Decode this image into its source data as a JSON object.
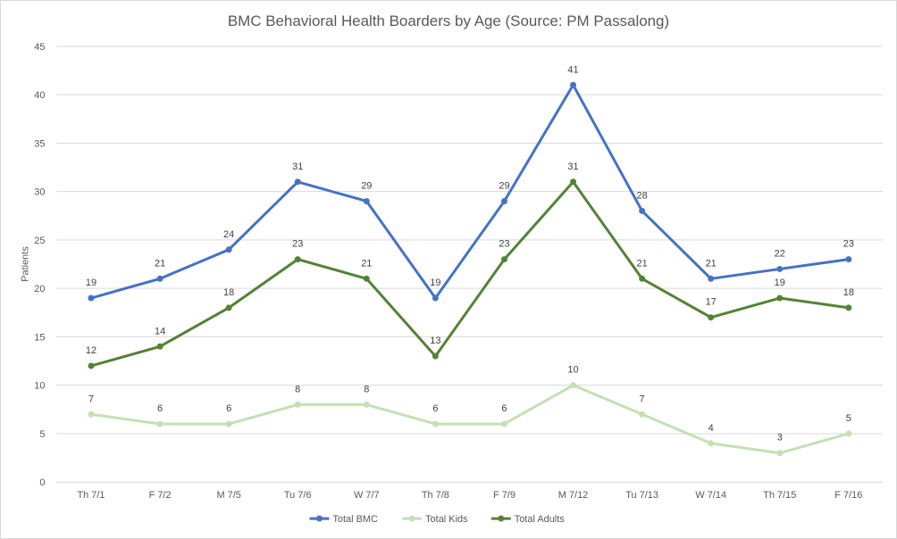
{
  "chart_data": {
    "type": "line",
    "title": "BMC Behavioral Health Boarders by Age (Source: PM Passalong)",
    "xlabel": "",
    "ylabel": "Patients",
    "ylim": [
      0,
      45
    ],
    "ytick_step": 5,
    "grid": true,
    "legend_position": "bottom",
    "categories": [
      "Th 7/1",
      "F 7/2",
      "M 7/5",
      "Tu 7/6",
      "W 7/7",
      "Th 7/8",
      "F 7/9",
      "M 7/12",
      "Tu 7/13",
      "W 7/14",
      "Th 7/15",
      "F 7/16"
    ],
    "series": [
      {
        "name": "Total BMC",
        "color": "#4472c4",
        "values": [
          19,
          21,
          24,
          31,
          29,
          19,
          29,
          41,
          28,
          21,
          22,
          23
        ]
      },
      {
        "name": "Total Kids",
        "color": "#c5e0b4",
        "values": [
          7,
          6,
          6,
          8,
          8,
          6,
          6,
          10,
          7,
          4,
          3,
          5
        ]
      },
      {
        "name": "Total Adults",
        "color": "#548235",
        "values": [
          12,
          14,
          18,
          23,
          21,
          13,
          23,
          31,
          21,
          17,
          19,
          18
        ]
      }
    ]
  }
}
